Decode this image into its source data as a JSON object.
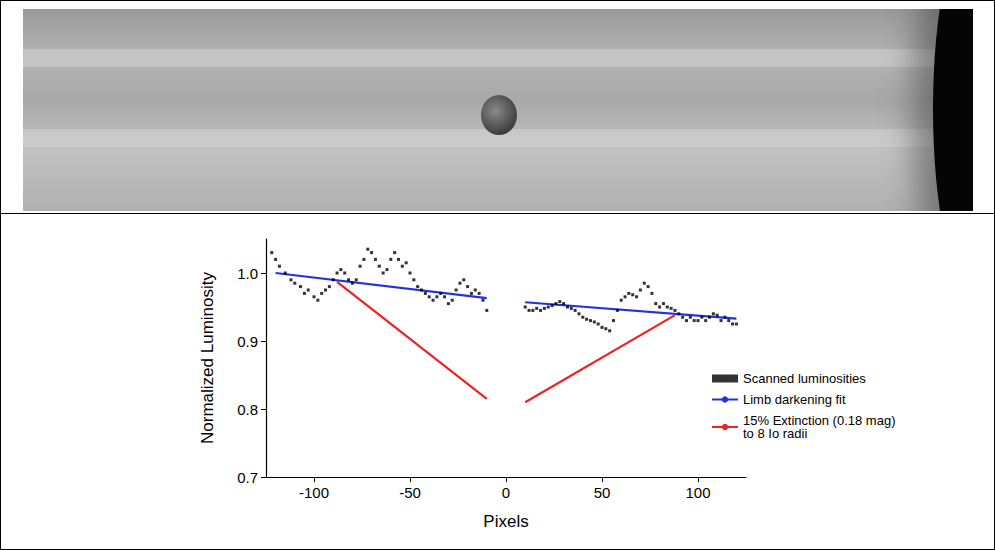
{
  "chart_data": {
    "type": "scatter",
    "x_label": "Pixels",
    "y_label": "Normalized Luminosity",
    "xlim": [
      -125,
      125
    ],
    "xticks": [
      -100,
      -50,
      0,
      50,
      100
    ],
    "ylim": [
      0.7,
      1.05
    ],
    "yticks": [
      0.7,
      0.8,
      0.9,
      {
        "value": 1,
        "label": "1.0"
      }
    ],
    "grid": false,
    "legend": "right",
    "series": [
      {
        "name": "Scanned luminosities",
        "type": "scatter",
        "color": "#000000",
        "marker": "square",
        "x": [
          -122,
          -120,
          -118,
          -115,
          -112,
          -110,
          -107,
          -105,
          -103,
          -100,
          -98,
          -96,
          -94,
          -92,
          -90,
          -88,
          -86,
          -84,
          -82,
          -80,
          -78,
          -76,
          -74,
          -72,
          -70,
          -68,
          -66,
          -64,
          -62,
          -60,
          -58,
          -56,
          -54,
          -52,
          -50,
          -48,
          -46,
          -44,
          -42,
          -40,
          -38,
          -36,
          -34,
          -32,
          -30,
          -28,
          -26,
          -24,
          -22,
          -20,
          -18,
          -16,
          -14,
          -12,
          -10,
          10,
          12,
          14,
          16,
          18,
          20,
          22,
          24,
          26,
          28,
          30,
          32,
          34,
          36,
          38,
          40,
          42,
          44,
          46,
          48,
          50,
          52,
          54,
          56,
          58,
          60,
          62,
          64,
          66,
          68,
          70,
          72,
          74,
          76,
          78,
          80,
          82,
          84,
          86,
          88,
          90,
          92,
          94,
          96,
          98,
          100,
          102,
          104,
          106,
          108,
          110,
          112,
          114,
          116,
          118,
          120
        ],
        "values": [
          1.03,
          1.02,
          1.01,
          1.0,
          0.99,
          0.985,
          0.98,
          0.97,
          0.975,
          0.965,
          0.96,
          0.97,
          0.975,
          0.98,
          0.99,
          1.0,
          1.005,
          1.0,
          0.99,
          0.985,
          0.99,
          1.01,
          1.02,
          1.035,
          1.03,
          1.02,
          1.01,
          1.0,
          1.005,
          1.02,
          1.03,
          1.02,
          1.01,
          1.015,
          1.0,
          0.99,
          0.98,
          0.975,
          0.97,
          0.965,
          0.96,
          0.965,
          0.97,
          0.965,
          0.955,
          0.96,
          0.975,
          0.985,
          0.99,
          0.98,
          0.97,
          0.975,
          0.97,
          0.96,
          0.945,
          0.95,
          0.945,
          0.945,
          0.948,
          0.945,
          0.948,
          0.95,
          0.952,
          0.955,
          0.958,
          0.955,
          0.95,
          0.948,
          0.945,
          0.94,
          0.935,
          0.932,
          0.93,
          0.928,
          0.925,
          0.92,
          0.918,
          0.915,
          0.93,
          0.945,
          0.96,
          0.965,
          0.97,
          0.968,
          0.965,
          0.975,
          0.985,
          0.98,
          0.97,
          0.955,
          0.95,
          0.955,
          0.95,
          0.948,
          0.945,
          0.94,
          0.935,
          0.93,
          0.935,
          0.93,
          0.93,
          0.935,
          0.93,
          0.935,
          0.94,
          0.938,
          0.93,
          0.935,
          0.93,
          0.925,
          0.925
        ]
      },
      {
        "name": "Limb darkening fit",
        "type": "line",
        "color": "#2233dd",
        "line_style": "solid",
        "x": [
          -120,
          -10,
          0,
          10,
          120
        ],
        "values": [
          1.0,
          0.963,
          null,
          0.957,
          0.933
        ]
      },
      {
        "name": "15% Extinction (0.18 mag) to 8 Io radii",
        "type": "line",
        "color": "#ee2222",
        "line_style": "solid",
        "x": [
          -88,
          -10,
          0,
          10,
          88
        ],
        "values": [
          0.987,
          0.815,
          null,
          0.81,
          0.938
        ]
      }
    ]
  }
}
